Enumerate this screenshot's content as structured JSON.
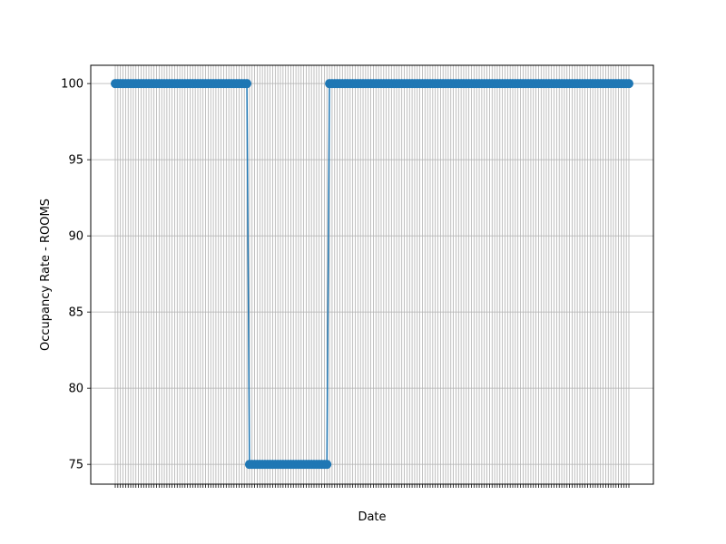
{
  "chart_data": {
    "type": "line",
    "xlabel": "Date",
    "ylabel": "Occupancy Rate - ROOMS",
    "x_count": 200,
    "x_ticks_unreadable": true,
    "series": [
      {
        "color": "#1f77b4",
        "marker": "circle",
        "segments": [
          {
            "from_index": 0,
            "to_index": 51,
            "value": 100
          },
          {
            "from_index": 52,
            "to_index": 82,
            "value": 75
          },
          {
            "from_index": 83,
            "to_index": 199,
            "value": 100
          }
        ]
      }
    ],
    "ylim": [
      73.7,
      101.2
    ],
    "y_ticks": [
      75,
      80,
      85,
      90,
      95,
      100
    ],
    "grid": true,
    "legend": "none"
  }
}
